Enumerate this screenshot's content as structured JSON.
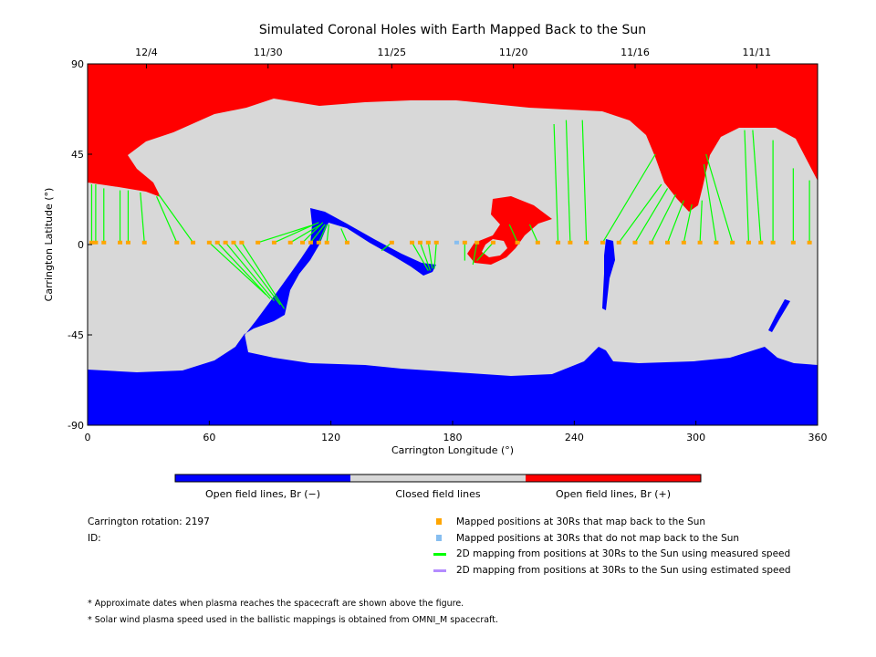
{
  "chart_data": {
    "type": "heatmap",
    "title": "Simulated Coronal Holes with Earth Mapped Back to the Sun",
    "xlabel": "Carrington Longitude (°)",
    "ylabel": "Carrington Latitude (°)",
    "xlim": [
      0,
      360
    ],
    "ylim": [
      -90,
      90
    ],
    "xticks": [
      "0",
      "60",
      "120",
      "180",
      "240",
      "300",
      "360"
    ],
    "yticks": [
      "90",
      "45",
      "0",
      "-45",
      "-90"
    ],
    "date_ticks": [
      {
        "label": "12/4",
        "lon": 29
      },
      {
        "label": "11/30",
        "lon": 89
      },
      {
        "label": "11/25",
        "lon": 150
      },
      {
        "label": "11/20",
        "lon": 210
      },
      {
        "label": "11/16",
        "lon": 270
      },
      {
        "label": "11/11",
        "lon": 330
      }
    ],
    "colorbar": [
      {
        "label": "Open field lines, Br (−)",
        "color": "#0000ff"
      },
      {
        "label": "Closed field lines",
        "color": "#d8d8d8"
      },
      {
        "label": "Open field lines, Br (+)",
        "color": "#ff0000"
      }
    ],
    "mapped_points": [
      {
        "lon": 2,
        "foot": [
          2,
          30
        ]
      },
      {
        "lon": 4,
        "foot": [
          4,
          30
        ]
      },
      {
        "lon": 8,
        "foot": [
          8,
          28
        ]
      },
      {
        "lon": 16,
        "foot": [
          16,
          27
        ]
      },
      {
        "lon": 20,
        "foot": [
          20,
          27
        ]
      },
      {
        "lon": 28,
        "foot": [
          26,
          26
        ]
      },
      {
        "lon": 44,
        "foot": [
          34,
          24
        ]
      },
      {
        "lon": 52,
        "foot": [
          35,
          25
        ]
      },
      {
        "lon": 60,
        "foot": [
          88,
          -25
        ]
      },
      {
        "lon": 64,
        "foot": [
          90,
          -27
        ]
      },
      {
        "lon": 68,
        "foot": [
          92,
          -28
        ]
      },
      {
        "lon": 72,
        "foot": [
          95,
          -30
        ]
      },
      {
        "lon": 76,
        "foot": [
          97,
          -32
        ]
      },
      {
        "lon": 84,
        "foot": [
          112,
          10
        ]
      },
      {
        "lon": 92,
        "foot": [
          114,
          11
        ]
      },
      {
        "lon": 100,
        "foot": [
          115,
          10
        ]
      },
      {
        "lon": 106,
        "foot": [
          116,
          11
        ]
      },
      {
        "lon": 110,
        "foot": [
          117,
          10
        ]
      },
      {
        "lon": 114,
        "foot": [
          118,
          10
        ]
      },
      {
        "lon": 118,
        "foot": [
          119,
          10
        ]
      },
      {
        "lon": 128,
        "foot": [
          125,
          8
        ]
      },
      {
        "lon": 150,
        "foot": [
          145,
          -3
        ]
      },
      {
        "lon": 160,
        "foot": [
          168,
          -13
        ]
      },
      {
        "lon": 164,
        "foot": [
          169,
          -13
        ]
      },
      {
        "lon": 168,
        "foot": [
          170,
          -12
        ]
      },
      {
        "lon": 172,
        "foot": [
          171,
          -12
        ]
      },
      {
        "lon": 186,
        "foot": [
          186,
          -8
        ],
        "unmapped": false
      },
      {
        "lon": 182,
        "unmapped": true
      },
      {
        "lon": 192,
        "foot": [
          190,
          -10
        ]
      },
      {
        "lon": 200,
        "foot": [
          192,
          -8
        ]
      },
      {
        "lon": 212,
        "foot": [
          208,
          10
        ]
      },
      {
        "lon": 222,
        "foot": [
          218,
          10
        ]
      },
      {
        "lon": 232,
        "foot": [
          230,
          60
        ]
      },
      {
        "lon": 238,
        "foot": [
          236,
          62
        ]
      },
      {
        "lon": 246,
        "foot": [
          244,
          62
        ]
      },
      {
        "lon": 254,
        "foot": [
          280,
          45
        ]
      },
      {
        "lon": 262,
        "foot": [
          283,
          30
        ]
      },
      {
        "lon": 270,
        "foot": [
          286,
          28
        ]
      },
      {
        "lon": 278,
        "foot": [
          290,
          25
        ]
      },
      {
        "lon": 286,
        "foot": [
          294,
          22
        ]
      },
      {
        "lon": 294,
        "foot": [
          298,
          20
        ]
      },
      {
        "lon": 302,
        "foot": [
          303,
          22
        ]
      },
      {
        "lon": 310,
        "foot": [
          304,
          40
        ]
      },
      {
        "lon": 318,
        "foot": [
          305,
          45
        ]
      },
      {
        "lon": 326,
        "foot": [
          324,
          57
        ]
      },
      {
        "lon": 332,
        "foot": [
          328,
          57
        ]
      },
      {
        "lon": 338,
        "foot": [
          338,
          52
        ]
      },
      {
        "lon": 348,
        "foot": [
          348,
          38
        ]
      },
      {
        "lon": 356,
        "foot": [
          356,
          32
        ]
      }
    ]
  },
  "info": {
    "rotation": "Carrington rotation: 2197",
    "id": "ID:"
  },
  "legend": [
    {
      "label": "Mapped positions at 30Rs that map back to the Sun",
      "color": "#ffa500"
    },
    {
      "label": "Mapped positions at 30Rs that do not map back to the Sun",
      "color": "#87bef0"
    },
    {
      "label": "2D mapping from positions at 30Rs to the Sun using measured speed",
      "color": "#00ff00"
    },
    {
      "label": "2D mapping from positions at 30Rs to the Sun using estimated speed",
      "color": "#b48cff"
    }
  ],
  "notes": [
    "* Approximate dates when plasma reaches the spacecraft are shown above the figure.",
    "* Solar wind plasma speed used in the ballistic mappings is obtained from OMNI_M spacecraft."
  ]
}
